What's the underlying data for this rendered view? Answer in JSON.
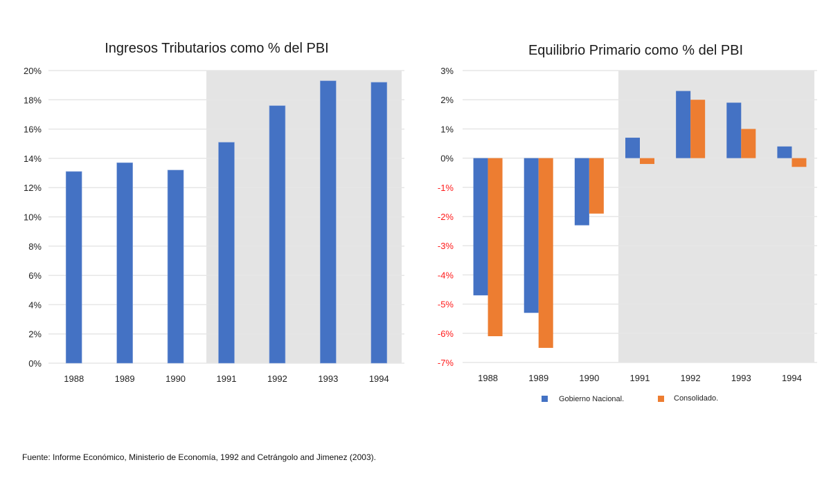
{
  "colors": {
    "gobierno": "#4472c4",
    "consolidado": "#ed7d31",
    "shade": "#e4e4e4",
    "grid": "#e6e6e6",
    "negative_tick": "#ff1a1a"
  },
  "chart_data": [
    {
      "type": "bar",
      "title": "Ingresos Tributarios como % del PBI",
      "xlabel": "",
      "ylabel": "",
      "categories": [
        "1988",
        "1989",
        "1990",
        "1991",
        "1992",
        "1993",
        "1994"
      ],
      "values": [
        13.1,
        13.7,
        13.2,
        15.1,
        17.6,
        19.3,
        19.2
      ],
      "unit": "%",
      "ylim": [
        0,
        20
      ],
      "yticks": [
        0,
        2,
        4,
        6,
        8,
        10,
        12,
        14,
        16,
        18,
        20
      ],
      "ytick_labels": [
        "0%",
        "2%",
        "4%",
        "6%",
        "8%",
        "10%",
        "12%",
        "14%",
        "16%",
        "18%",
        "20%"
      ],
      "grid": true,
      "shaded_categories": [
        "1991",
        "1992",
        "1993",
        "1994"
      ]
    },
    {
      "type": "bar",
      "title": "Equilibrio Primario como % del PBI",
      "xlabel": "",
      "ylabel": "",
      "categories": [
        "1988",
        "1989",
        "1990",
        "1991",
        "1992",
        "1993",
        "1994"
      ],
      "series": [
        {
          "name": "Gobierno Nacional.",
          "values": [
            -4.7,
            -5.3,
            -2.3,
            0.7,
            2.3,
            1.9,
            0.4
          ]
        },
        {
          "name": "Consolidado.",
          "values": [
            -6.1,
            -6.5,
            -1.9,
            -0.2,
            2.0,
            1.0,
            -0.3
          ]
        }
      ],
      "unit": "%",
      "ylim": [
        -7,
        3
      ],
      "yticks": [
        3,
        2,
        1,
        0,
        -1,
        -2,
        -3,
        -4,
        -5,
        -6,
        -7
      ],
      "ytick_labels": [
        "3%",
        "2%",
        "1%",
        "0%",
        "-1%",
        "-2%",
        "-3%",
        "-4%",
        "-5%",
        "-6%",
        "-7%"
      ],
      "grid": true,
      "legend_position": "bottom",
      "shaded_categories": [
        "1991",
        "1992",
        "1993",
        "1994"
      ]
    }
  ],
  "source_note": "Fuente: Informe Económico, Ministerio de Economía, 1992 and Cetrángolo and Jimenez (2003)."
}
